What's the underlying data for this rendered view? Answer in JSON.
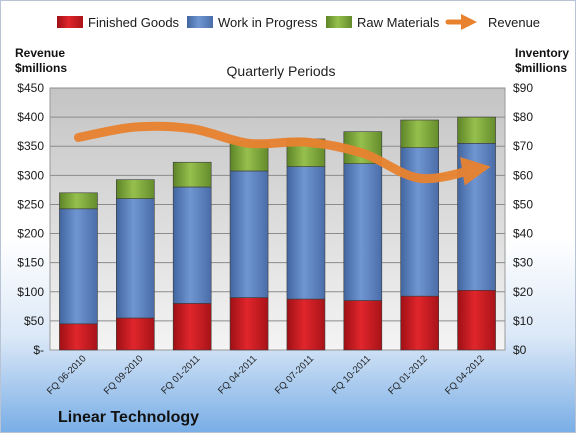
{
  "company": "Linear Technology",
  "chart_data": {
    "type": "bar",
    "stacked": true,
    "subtitle": "Quarterly Periods",
    "categories": [
      "FQ 06-2010",
      "FQ 09-2010",
      "FQ 01-2011",
      "FQ 04-2011",
      "FQ 07-2011",
      "FQ 10-2011",
      "FQ 01-2012",
      "FQ 04-2012"
    ],
    "left_axis": {
      "title_line1": "Revenue",
      "title_line2": "$millions",
      "range": [
        0,
        450
      ],
      "ticks": [
        "$-",
        "$50",
        "$100",
        "$150",
        "$200",
        "$250",
        "$300",
        "$350",
        "$400",
        "$450"
      ]
    },
    "right_axis": {
      "title_line1": "Inventory",
      "title_line2": "$millions",
      "range": [
        0,
        90
      ],
      "ticks": [
        "$0",
        "$10",
        "$20",
        "$30",
        "$40",
        "$50",
        "$60",
        "$70",
        "$80",
        "$90"
      ]
    },
    "series": [
      {
        "name": "Finished Goods",
        "axis": "right",
        "color": "#c0141b",
        "values": [
          9,
          11,
          16,
          18,
          17.5,
          17,
          18.5,
          20.5
        ]
      },
      {
        "name": "Work in Progress",
        "axis": "right",
        "color": "#5a80bf",
        "values": [
          39.5,
          41,
          40,
          43.5,
          45.5,
          47,
          51,
          50.5
        ]
      },
      {
        "name": "Raw Materials",
        "axis": "right",
        "color": "#79a33a",
        "values": [
          5.5,
          6.5,
          8.5,
          10,
          9.5,
          11,
          9.5,
          9
        ]
      },
      {
        "name": "Revenue",
        "axis": "left",
        "type": "line",
        "color": "#e8822f",
        "values": [
          365,
          383,
          380,
          355,
          357,
          338,
          295,
          311
        ]
      }
    ],
    "grid": true,
    "legend": "top"
  }
}
